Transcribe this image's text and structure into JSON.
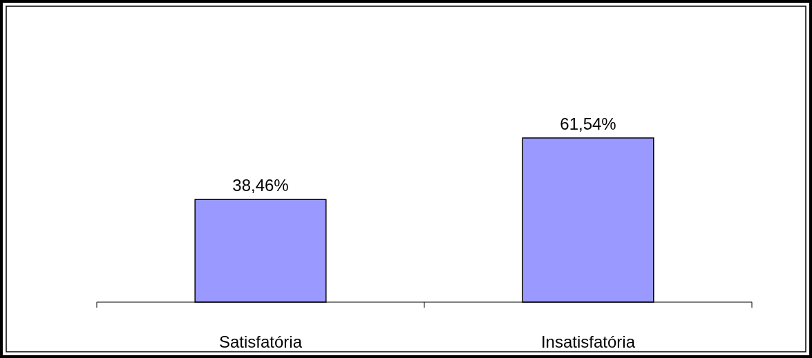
{
  "chart_data": {
    "type": "bar",
    "categories": [
      "Satisfatória",
      "Insatisfatória"
    ],
    "values": [
      38.46,
      61.54
    ],
    "value_labels": [
      "38,46%",
      "61,54%"
    ],
    "color": "#9999ff"
  }
}
